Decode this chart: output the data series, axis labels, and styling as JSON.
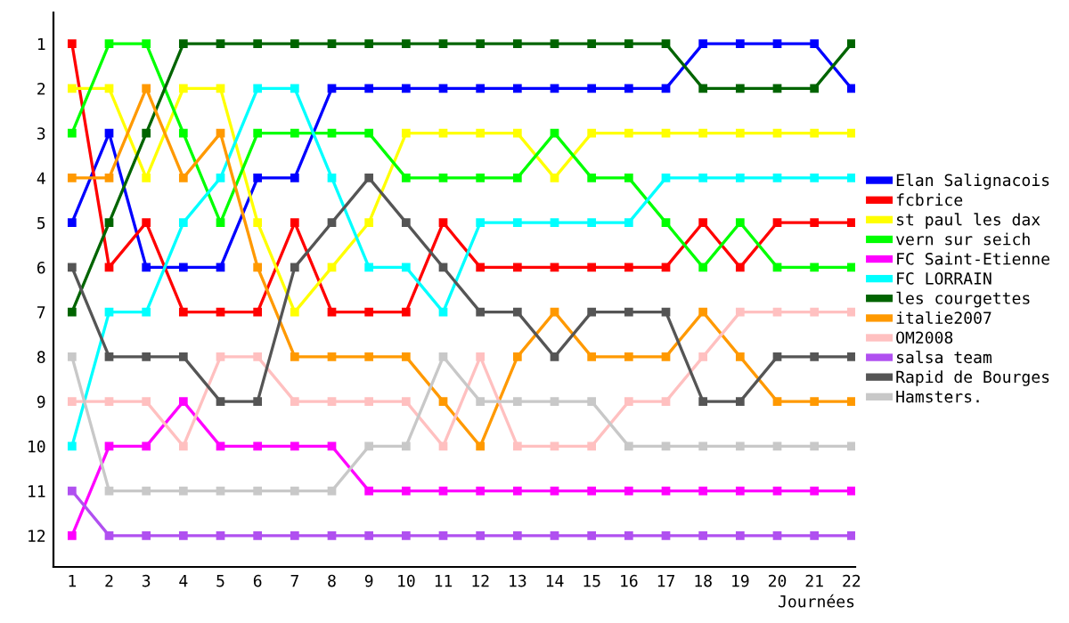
{
  "chart_data": {
    "type": "line",
    "xlabel": "Journées",
    "x": [
      1,
      2,
      3,
      4,
      5,
      6,
      7,
      8,
      9,
      10,
      11,
      12,
      13,
      14,
      15,
      16,
      17,
      18,
      19,
      20,
      21,
      22
    ],
    "xlim": [
      0.5,
      22.1
    ],
    "xticks": [
      1,
      2,
      3,
      4,
      5,
      6,
      7,
      8,
      9,
      10,
      11,
      12,
      13,
      14,
      15,
      16,
      17,
      18,
      19,
      20,
      21,
      22
    ],
    "ylim": [
      12.7,
      0.3
    ],
    "yticks": [
      1,
      2,
      3,
      4,
      5,
      6,
      7,
      8,
      9,
      10,
      11,
      12
    ],
    "grid": false,
    "legend": "right",
    "marker": "square",
    "line_style": "solid",
    "series": [
      {
        "name": "Elan Salignacois",
        "color": "#0000ff",
        "values": [
          5,
          3,
          6,
          6,
          6,
          4,
          4,
          2,
          2,
          2,
          2,
          2,
          2,
          2,
          2,
          2,
          2,
          1,
          1,
          1,
          1,
          2
        ]
      },
      {
        "name": "fcbrice",
        "color": "#ff0000",
        "values": [
          1,
          6,
          5,
          7,
          7,
          7,
          5,
          7,
          7,
          7,
          5,
          6,
          6,
          6,
          6,
          6,
          6,
          5,
          6,
          5,
          5,
          5
        ]
      },
      {
        "name": "st paul les dax",
        "color": "#ffff00",
        "values": [
          2,
          2,
          4,
          2,
          2,
          5,
          7,
          6,
          5,
          3,
          3,
          3,
          3,
          4,
          3,
          3,
          3,
          3,
          3,
          3,
          3,
          3
        ]
      },
      {
        "name": "vern sur seich",
        "color": "#00ff00",
        "values": [
          3,
          1,
          1,
          3,
          5,
          3,
          3,
          3,
          3,
          4,
          4,
          4,
          4,
          3,
          4,
          4,
          5,
          6,
          5,
          6,
          6,
          6
        ]
      },
      {
        "name": "FC Saint-Etienne",
        "color": "#ff00ff",
        "values": [
          12,
          10,
          10,
          9,
          10,
          10,
          10,
          10,
          11,
          11,
          11,
          11,
          11,
          11,
          11,
          11,
          11,
          11,
          11,
          11,
          11,
          11
        ]
      },
      {
        "name": "FC LORRAIN",
        "color": "#00ffff",
        "values": [
          10,
          7,
          7,
          5,
          4,
          2,
          2,
          4,
          6,
          6,
          7,
          5,
          5,
          5,
          5,
          5,
          4,
          4,
          4,
          4,
          4,
          4
        ]
      },
      {
        "name": "les courgettes",
        "color": "#006400",
        "values": [
          7,
          5,
          3,
          1,
          1,
          1,
          1,
          1,
          1,
          1,
          1,
          1,
          1,
          1,
          1,
          1,
          1,
          2,
          2,
          2,
          2,
          1
        ]
      },
      {
        "name": "italie2007",
        "color": "#ff9900",
        "values": [
          4,
          4,
          2,
          4,
          3,
          6,
          8,
          8,
          8,
          8,
          9,
          10,
          8,
          7,
          8,
          8,
          8,
          7,
          8,
          9,
          9,
          9
        ]
      },
      {
        "name": "OM2008",
        "color": "#ffc0c0",
        "values": [
          9,
          9,
          9,
          10,
          8,
          8,
          9,
          9,
          9,
          9,
          10,
          8,
          10,
          10,
          10,
          9,
          9,
          8,
          7,
          7,
          7,
          7
        ]
      },
      {
        "name": "salsa team",
        "color": "#b050f0",
        "values": [
          11,
          12,
          12,
          12,
          12,
          12,
          12,
          12,
          12,
          12,
          12,
          12,
          12,
          12,
          12,
          12,
          12,
          12,
          12,
          12,
          12,
          12
        ]
      },
      {
        "name": "Rapid de Bourges",
        "color": "#555555",
        "values": [
          6,
          8,
          8,
          8,
          9,
          9,
          6,
          5,
          4,
          5,
          6,
          7,
          7,
          8,
          7,
          7,
          7,
          9,
          9,
          8,
          8,
          8
        ]
      },
      {
        "name": "Hamsters.",
        "color": "#c8c8c8",
        "values": [
          8,
          11,
          11,
          11,
          11,
          11,
          11,
          11,
          10,
          10,
          8,
          9,
          9,
          9,
          9,
          10,
          10,
          10,
          10,
          10,
          10,
          10
        ]
      }
    ]
  }
}
